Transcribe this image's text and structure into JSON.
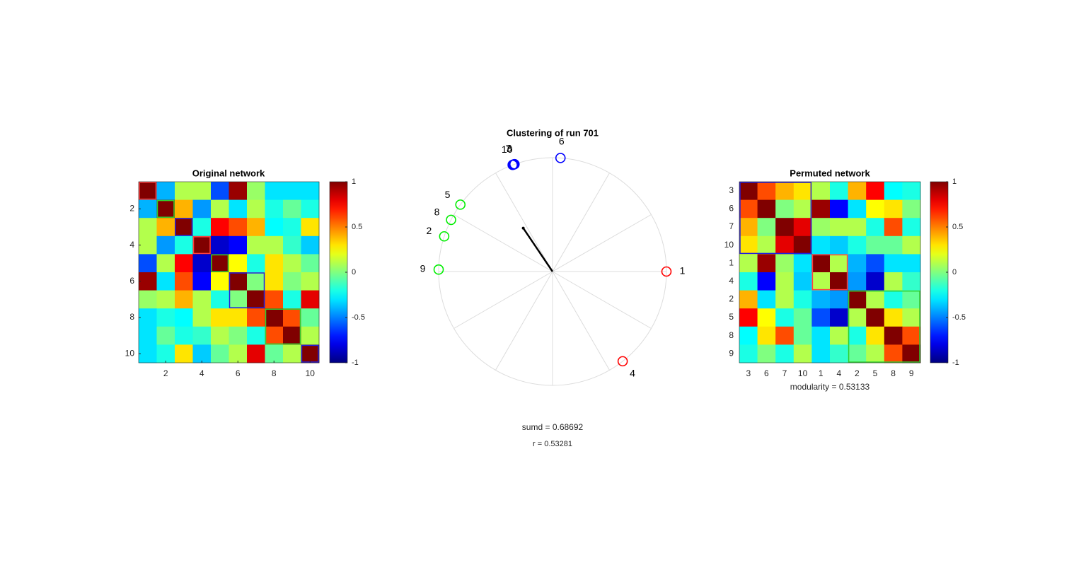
{
  "chart_data": [
    {
      "type": "heatmap",
      "title": "Original network",
      "xlim": [
        0.5,
        10.5
      ],
      "ylim": [
        0.5,
        10.5
      ],
      "xticks": [
        2,
        4,
        6,
        8,
        10
      ],
      "yticks": [
        2,
        4,
        6,
        8,
        10
      ],
      "clim": [
        -1,
        1
      ],
      "cticks": [
        -1,
        -0.5,
        0,
        0.5,
        1
      ],
      "colormap": "jet",
      "values": [
        [
          1,
          -0.4,
          0.1,
          0.1,
          -0.6,
          0.95,
          0.05,
          -0.3,
          -0.3,
          -0.3
        ],
        [
          -0.4,
          1,
          0.4,
          -0.45,
          0.1,
          -0.3,
          0.1,
          -0.2,
          -0.05,
          -0.2
        ],
        [
          0.1,
          0.4,
          1,
          -0.2,
          0.75,
          0.6,
          0.4,
          -0.25,
          -0.2,
          0.3
        ],
        [
          0.1,
          -0.45,
          -0.2,
          1,
          -0.85,
          -0.75,
          0.1,
          0.1,
          -0.15,
          -0.35
        ],
        [
          -0.6,
          0.1,
          0.75,
          -0.85,
          1,
          0.25,
          -0.2,
          0.3,
          0.1,
          -0.05
        ],
        [
          0.95,
          -0.3,
          0.6,
          -0.75,
          0.25,
          1,
          0,
          0.3,
          0,
          0.1
        ],
        [
          0.05,
          0.1,
          0.4,
          0.1,
          -0.2,
          0,
          1,
          0.6,
          -0.2,
          0.8
        ],
        [
          -0.3,
          -0.2,
          -0.25,
          0.1,
          0.3,
          0.3,
          0.6,
          1,
          0.6,
          -0.05
        ],
        [
          -0.3,
          -0.05,
          -0.2,
          -0.15,
          0.1,
          0,
          -0.2,
          0.6,
          1,
          0.1
        ],
        [
          -0.3,
          -0.2,
          0.3,
          -0.35,
          -0.05,
          0.1,
          0.8,
          -0.05,
          0.1,
          1
        ]
      ],
      "cluster_boxes": [
        {
          "from": 1,
          "to": 1,
          "color": "#ff4040"
        },
        {
          "from": 2,
          "to": 2,
          "color": "#30d030"
        },
        {
          "from": 3,
          "to": 3,
          "color": "#2020e0"
        },
        {
          "from": 4,
          "to": 4,
          "color": "#ff4040"
        },
        {
          "from": 5,
          "to": 5,
          "color": "#30d030"
        },
        {
          "from": 6,
          "to": 7,
          "color": "#2020e0"
        },
        {
          "from": 8,
          "to": 9,
          "color": "#30d030"
        },
        {
          "from": 10,
          "to": 10,
          "color": "#2020e0"
        }
      ]
    },
    {
      "type": "polar_scatter",
      "title": "Clustering of run 701",
      "labels": [
        "1",
        "4",
        "6",
        "3",
        "7",
        "10",
        "5",
        "8",
        "2",
        "9"
      ],
      "angles": [
        0,
        -52,
        86,
        109.5,
        110,
        110.5,
        144,
        153,
        162,
        179
      ],
      "colors": [
        "#ff0000",
        "#ff0000",
        "#0000ff",
        "#0000ff",
        "#0000ff",
        "#0000ff",
        "#00ee00",
        "#00ee00",
        "#00ee00",
        "#00ee00"
      ],
      "resultant": {
        "angle": 124,
        "length": 0.46
      },
      "annotations": [
        "sumd = 0.68692",
        "r = 0.53281"
      ]
    },
    {
      "type": "heatmap",
      "title": "Permuted network",
      "xlabel": "modularity = 0.53133",
      "categories": [
        "3",
        "6",
        "7",
        "10",
        "1",
        "4",
        "2",
        "5",
        "8",
        "9"
      ],
      "clim": [
        -1,
        1
      ],
      "cticks": [
        -1,
        -0.5,
        0,
        0.5,
        1
      ],
      "colormap": "jet",
      "values": [
        [
          1,
          0.6,
          0.4,
          0.3,
          0.1,
          -0.2,
          0.4,
          0.75,
          -0.25,
          -0.2
        ],
        [
          0.6,
          1,
          0,
          0.1,
          0.95,
          -0.75,
          -0.3,
          0.25,
          0.3,
          0
        ],
        [
          0.4,
          0,
          1,
          0.8,
          0.05,
          0.1,
          0.1,
          -0.2,
          0.6,
          -0.2
        ],
        [
          0.3,
          0.1,
          0.8,
          1,
          -0.3,
          -0.35,
          -0.2,
          -0.05,
          -0.05,
          0.1
        ],
        [
          0.1,
          0.95,
          0.05,
          -0.3,
          1,
          0.1,
          -0.4,
          -0.6,
          -0.3,
          -0.3
        ],
        [
          -0.2,
          -0.75,
          0.1,
          -0.35,
          0.1,
          1,
          -0.45,
          -0.85,
          0.1,
          -0.15
        ],
        [
          0.4,
          -0.3,
          0.1,
          -0.2,
          -0.4,
          -0.45,
          1,
          0.1,
          -0.2,
          -0.05
        ],
        [
          0.75,
          0.25,
          -0.2,
          -0.05,
          -0.6,
          -0.85,
          0.1,
          1,
          0.3,
          0.1
        ],
        [
          -0.25,
          0.3,
          0.6,
          -0.05,
          -0.3,
          0.1,
          -0.2,
          0.3,
          1,
          0.6
        ],
        [
          -0.2,
          0,
          -0.2,
          0.1,
          -0.3,
          -0.15,
          -0.05,
          0.1,
          0.6,
          1
        ]
      ],
      "cluster_boxes": [
        {
          "from": 1,
          "to": 4,
          "color": "#2020e0"
        },
        {
          "from": 5,
          "to": 6,
          "color": "#ff4040"
        },
        {
          "from": 7,
          "to": 10,
          "color": "#30d030"
        }
      ]
    }
  ]
}
